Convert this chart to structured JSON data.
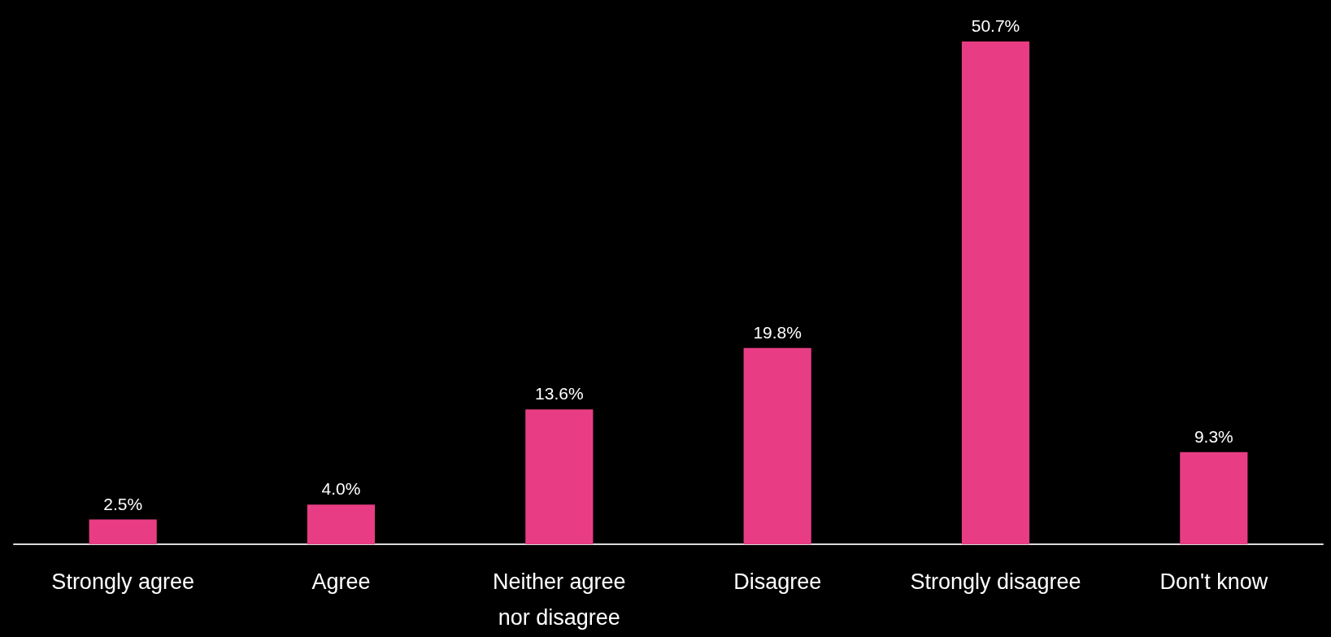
{
  "chart_data": {
    "type": "bar",
    "categories": [
      "Strongly agree",
      "Agree",
      "Neither agree nor disagree",
      "Disagree",
      "Strongly disagree",
      "Don't know"
    ],
    "values": [
      2.5,
      4.0,
      13.6,
      19.8,
      50.7,
      9.3
    ],
    "value_labels": [
      "2.5%",
      "4.0%",
      "13.6%",
      "19.8%",
      "50.7%",
      "9.3%"
    ],
    "color": "#e83d84"
  }
}
